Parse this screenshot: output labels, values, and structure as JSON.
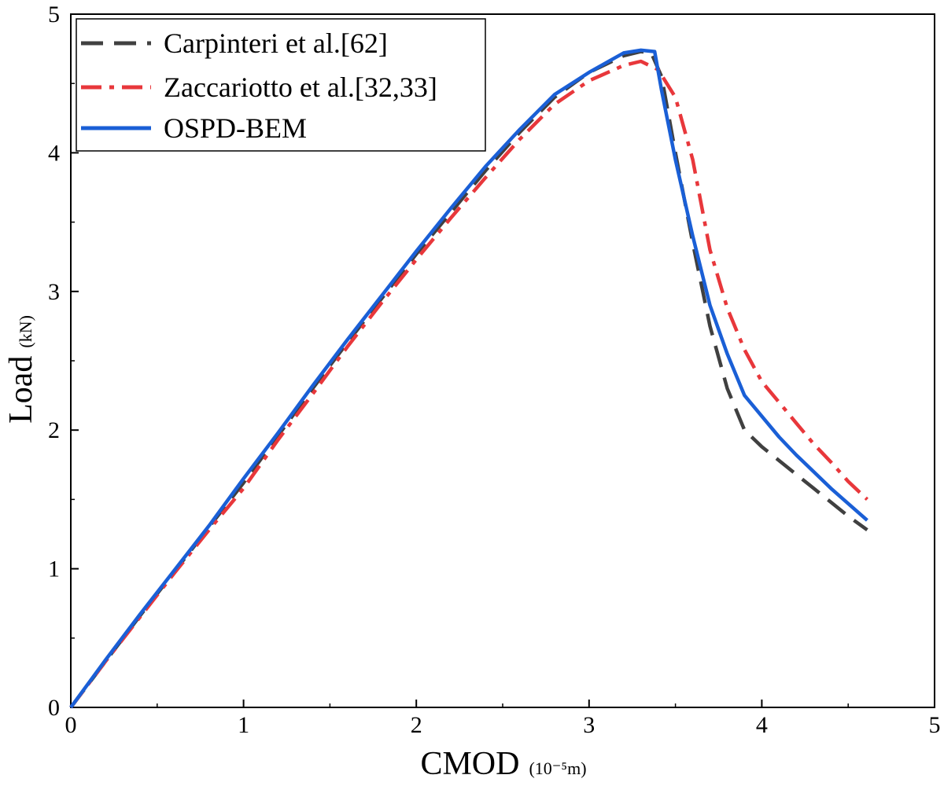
{
  "chart_data": {
    "type": "line",
    "title": "",
    "xlabel": "CMOD",
    "xlabel_unit": "(10⁻⁵m)",
    "ylabel": "Load",
    "ylabel_unit": "(kN)",
    "xlim": [
      0,
      5
    ],
    "ylim": [
      0,
      5
    ],
    "xticks": [
      0,
      1,
      2,
      3,
      4,
      5
    ],
    "yticks": [
      0,
      1,
      2,
      3,
      4,
      5
    ],
    "grid": false,
    "legend_position": "top-left",
    "series": [
      {
        "name": "Carpinteri et al.[62]",
        "color": "#404040",
        "style": "dashed",
        "x": [
          0,
          0.2,
          0.4,
          0.6,
          0.8,
          1.0,
          1.2,
          1.4,
          1.6,
          1.8,
          2.0,
          2.2,
          2.4,
          2.6,
          2.8,
          3.0,
          3.2,
          3.3,
          3.36,
          3.42,
          3.5,
          3.6,
          3.7,
          3.8,
          3.9,
          4.0,
          4.1,
          4.2,
          4.3,
          4.4,
          4.5,
          4.61
        ],
        "y": [
          0,
          0.33,
          0.66,
          0.98,
          1.3,
          1.62,
          1.96,
          2.3,
          2.63,
          2.95,
          3.27,
          3.57,
          3.87,
          4.15,
          4.4,
          4.58,
          4.7,
          4.73,
          4.72,
          4.55,
          4.0,
          3.35,
          2.75,
          2.3,
          2.0,
          1.88,
          1.78,
          1.68,
          1.58,
          1.48,
          1.38,
          1.28
        ]
      },
      {
        "name": "Zaccariotto et al.[32,33]",
        "color": "#e8373b",
        "style": "dashdot",
        "x": [
          0,
          0.2,
          0.4,
          0.6,
          0.8,
          1.0,
          1.2,
          1.4,
          1.6,
          1.8,
          2.0,
          2.2,
          2.4,
          2.6,
          2.8,
          3.0,
          3.2,
          3.3,
          3.4,
          3.5,
          3.6,
          3.7,
          3.8,
          3.9,
          4.0,
          4.1,
          4.2,
          4.3,
          4.4,
          4.5,
          4.61
        ],
        "y": [
          0,
          0.33,
          0.65,
          0.97,
          1.28,
          1.58,
          1.93,
          2.26,
          2.6,
          2.92,
          3.23,
          3.53,
          3.82,
          4.1,
          4.35,
          4.52,
          4.63,
          4.66,
          4.6,
          4.4,
          3.95,
          3.3,
          2.88,
          2.58,
          2.35,
          2.2,
          2.05,
          1.9,
          1.77,
          1.63,
          1.5
        ]
      },
      {
        "name": "OSPD-BEM",
        "color": "#1a5fd6",
        "style": "solid",
        "x": [
          0,
          0.2,
          0.4,
          0.6,
          0.8,
          1.0,
          1.2,
          1.4,
          1.6,
          1.8,
          2.0,
          2.2,
          2.4,
          2.6,
          2.8,
          3.0,
          3.1,
          3.2,
          3.3,
          3.38,
          3.42,
          3.5,
          3.6,
          3.7,
          3.8,
          3.9,
          4.0,
          4.1,
          4.2,
          4.3,
          4.4,
          4.5,
          4.61
        ],
        "y": [
          0,
          0.34,
          0.67,
          0.99,
          1.31,
          1.65,
          1.98,
          2.32,
          2.65,
          2.97,
          3.29,
          3.6,
          3.9,
          4.17,
          4.42,
          4.58,
          4.65,
          4.72,
          4.74,
          4.73,
          4.45,
          3.95,
          3.4,
          2.9,
          2.55,
          2.25,
          2.1,
          1.95,
          1.82,
          1.7,
          1.58,
          1.47,
          1.35
        ]
      }
    ]
  }
}
